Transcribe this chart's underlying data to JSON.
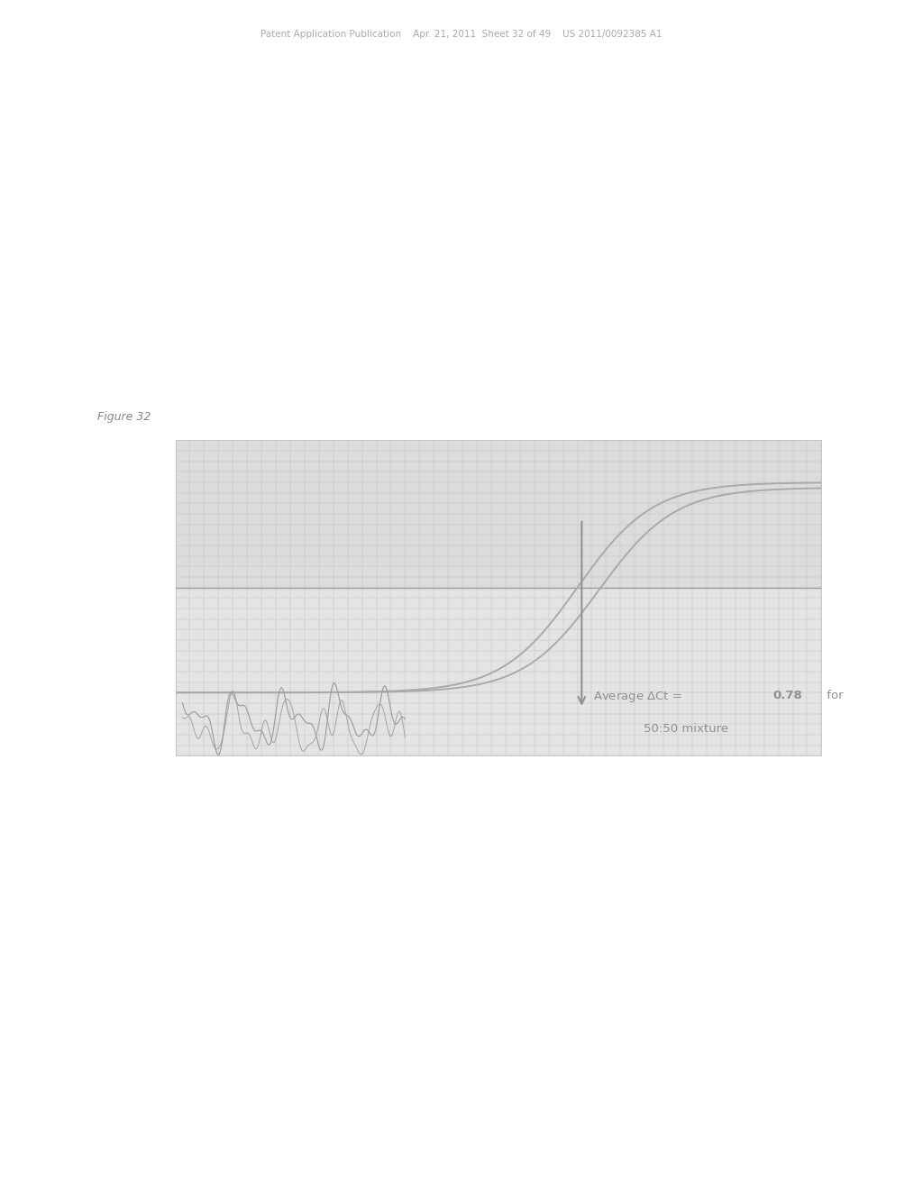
{
  "figure_label": "Figure 32",
  "header_text": "Patent Application Publication    Apr. 21, 2011  Sheet 32 of 49    US 2011/0092385 A1",
  "bg_color": "#ffffff",
  "plot_bg_upper": "#dcdcdc",
  "plot_bg_lower": "#e4e4e4",
  "grid_color": "#c8c8c8",
  "curve_color": "#aaaaaa",
  "noise_color": "#999999",
  "hline_color": "#a0a0a0",
  "arrow_color": "#909090",
  "annotation_color": "#909090",
  "fig_label_color": "#888888",
  "header_color": "#aaaaaa",
  "sigmoid1_mid": 28,
  "sigmoid1_steep": 0.38,
  "sigmoid1_max": 2.0,
  "sigmoid2_mid": 29.5,
  "sigmoid2_steep": 0.38,
  "sigmoid2_max": 1.95,
  "threshold_y": 1.0,
  "xlim": [
    0,
    45
  ],
  "ylim": [
    -0.6,
    2.4
  ]
}
